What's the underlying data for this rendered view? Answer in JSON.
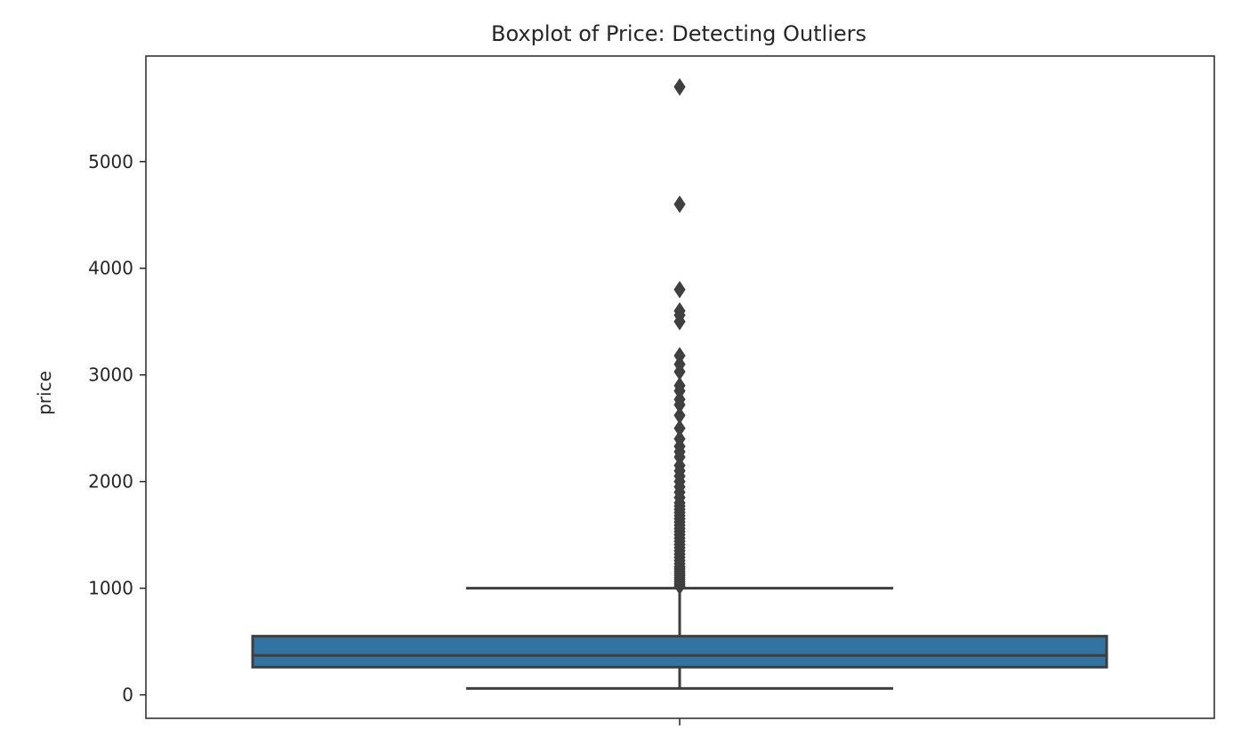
{
  "chart_data": {
    "type": "box",
    "title": "Boxplot of Price: Detecting Outliers",
    "xlabel": "",
    "ylabel": "price",
    "ylim": [
      -220,
      5990
    ],
    "yticks": [
      0,
      1000,
      2000,
      3000,
      4000,
      5000
    ],
    "ytick_labels": [
      "0",
      "1000",
      "2000",
      "3000",
      "4000",
      "5000"
    ],
    "grid": false,
    "box": {
      "whisker_low": 60,
      "q1": 260,
      "median": 370,
      "q3": 550,
      "whisker_high": 1000,
      "fill_color": "#3274a1",
      "line_color": "#3f3f3f"
    },
    "outliers": [
      1020,
      1040,
      1060,
      1080,
      1100,
      1120,
      1140,
      1160,
      1180,
      1200,
      1230,
      1260,
      1290,
      1320,
      1350,
      1380,
      1410,
      1440,
      1470,
      1500,
      1530,
      1560,
      1590,
      1620,
      1650,
      1680,
      1710,
      1740,
      1770,
      1800,
      1850,
      1900,
      1950,
      2000,
      2050,
      2100,
      2150,
      2230,
      2280,
      2330,
      2400,
      2500,
      2620,
      2720,
      2770,
      2850,
      2900,
      3030,
      3100,
      3180,
      3500,
      3560,
      3600,
      3800,
      4600,
      5700
    ]
  }
}
